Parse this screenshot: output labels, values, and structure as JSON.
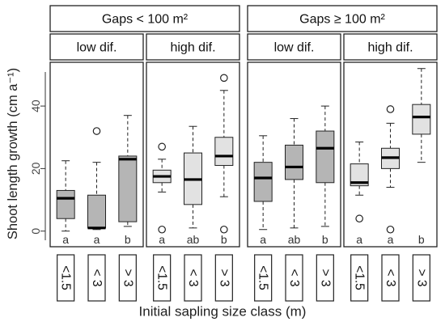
{
  "chart_data": {
    "type": "boxplot",
    "ylabel": "Shoot length growth (cm a⁻¹)",
    "xlabel": "Initial sapling size class (m)",
    "ylim": [
      -5,
      54
    ],
    "yticks": [
      0,
      20,
      40
    ],
    "categories": [
      "<1.5",
      "< 3",
      "> 3"
    ],
    "gap_groups": [
      {
        "label": "Gaps < 100 m²"
      },
      {
        "label": "Gaps ≥ 100 m²"
      }
    ],
    "panels": [
      {
        "gap": 0,
        "label": "low dif.",
        "boxes": [
          {
            "category": "<1.5",
            "fill": "#b5b5b5",
            "whisker_low": 0,
            "q1": 4,
            "median": 10.5,
            "q3": 13,
            "whisker_high": 22.5,
            "outliers": [],
            "letter": "a"
          },
          {
            "category": "< 3",
            "fill": "#b5b5b5",
            "whisker_low": 0.5,
            "q1": 1,
            "median": 1,
            "q3": 11.5,
            "whisker_high": 22,
            "outliers": [
              32
            ],
            "letter": "a"
          },
          {
            "category": "> 3",
            "fill": "#b5b5b5",
            "whisker_low": 1.5,
            "q1": 3,
            "median": 23,
            "q3": 24,
            "whisker_high": 37,
            "outliers": [],
            "letter": "b"
          }
        ]
      },
      {
        "gap": 0,
        "label": "high dif.",
        "boxes": [
          {
            "category": "<1.5",
            "fill": "#e2e2e2",
            "whisker_low": 12.5,
            "q1": 15.5,
            "median": 17.5,
            "q3": 19.5,
            "whisker_high": 23,
            "outliers": [
              0.5,
              27
            ],
            "letter": "a"
          },
          {
            "category": "< 3",
            "fill": "#e2e2e2",
            "whisker_low": 1,
            "q1": 8.5,
            "median": 16.5,
            "q3": 25,
            "whisker_high": 33.5,
            "outliers": [],
            "letter": "ab"
          },
          {
            "category": "> 3",
            "fill": "#e2e2e2",
            "whisker_low": 11,
            "q1": 21,
            "median": 24,
            "q3": 30,
            "whisker_high": 45,
            "outliers": [
              0.5,
              49
            ],
            "letter": "b"
          }
        ]
      },
      {
        "gap": 1,
        "label": "low dif.",
        "boxes": [
          {
            "category": "<1.5",
            "fill": "#b5b5b5",
            "whisker_low": 0.5,
            "q1": 9.5,
            "median": 17,
            "q3": 22,
            "whisker_high": 30.5,
            "outliers": [],
            "letter": "a"
          },
          {
            "category": "< 3",
            "fill": "#b5b5b5",
            "whisker_low": 1,
            "q1": 16.5,
            "median": 20.5,
            "q3": 27.5,
            "whisker_high": 36,
            "outliers": [],
            "letter": "ab"
          },
          {
            "category": "> 3",
            "fill": "#b5b5b5",
            "whisker_low": 1.5,
            "q1": 15.5,
            "median": 26.5,
            "q3": 32,
            "whisker_high": 40,
            "outliers": [],
            "letter": "b"
          }
        ]
      },
      {
        "gap": 1,
        "label": "high dif.",
        "boxes": [
          {
            "category": "<1.5",
            "fill": "#e2e2e2",
            "whisker_low": 11.5,
            "q1": 14.5,
            "median": 15.5,
            "q3": 21.5,
            "whisker_high": 28.5,
            "outliers": [
              4
            ],
            "letter": "a"
          },
          {
            "category": "< 3",
            "fill": "#e2e2e2",
            "whisker_low": 14,
            "q1": 20,
            "median": 23.5,
            "q3": 26.5,
            "whisker_high": 34.5,
            "outliers": [
              0.5,
              39
            ],
            "letter": "a"
          },
          {
            "category": "> 3",
            "fill": "#e2e2e2",
            "whisker_low": 22,
            "q1": 31,
            "median": 36.5,
            "q3": 40.5,
            "whisker_high": 52,
            "outliers": [],
            "letter": "b"
          }
        ]
      }
    ]
  }
}
